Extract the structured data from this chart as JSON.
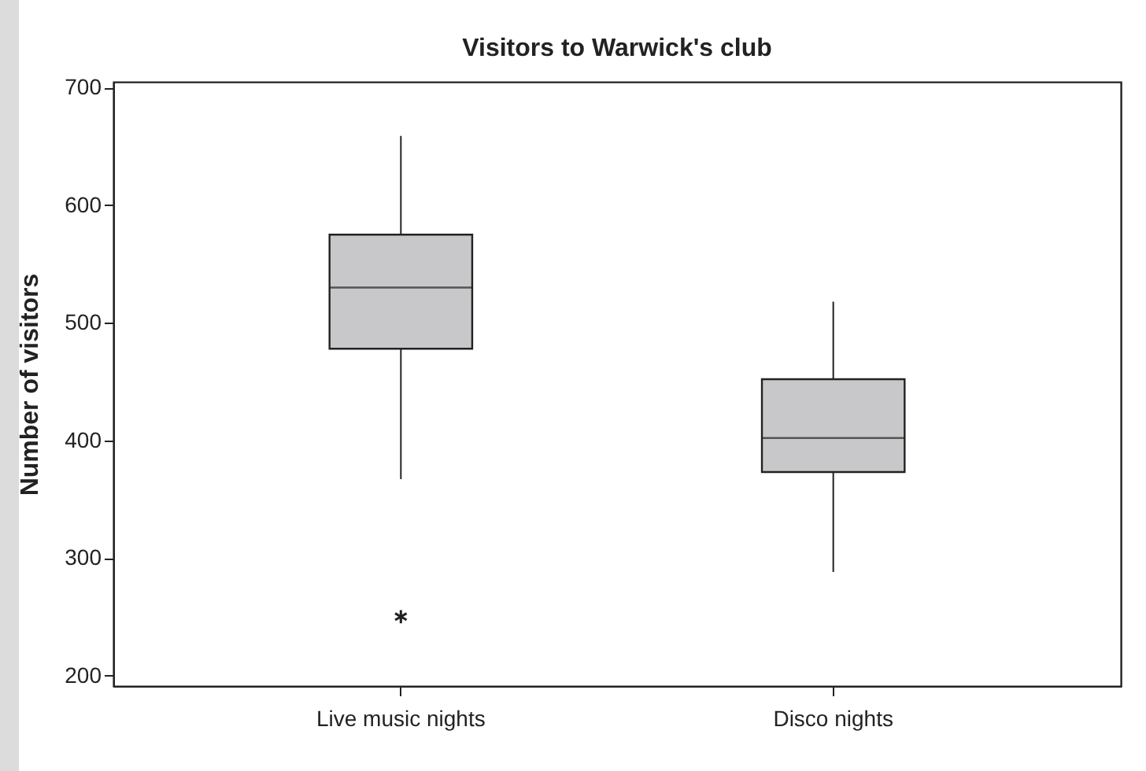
{
  "chart_data": {
    "type": "box",
    "title": "Visitors to Warwick's club",
    "ylabel": "Number of visitors",
    "categories": [
      "Live music nights",
      "Disco nights"
    ],
    "boxes": [
      {
        "low": 367,
        "q1": 478,
        "median": 530,
        "q3": 575,
        "high": 659,
        "outliers": [
          250
        ]
      },
      {
        "low": 288,
        "q1": 373,
        "median": 402,
        "q3": 452,
        "high": 518
      }
    ],
    "color": "#c8c8ca",
    "marker": "star",
    "ylim": [
      191,
      705
    ],
    "yticks": [
      200,
      300,
      400,
      500,
      600,
      700
    ],
    "grid": false
  }
}
